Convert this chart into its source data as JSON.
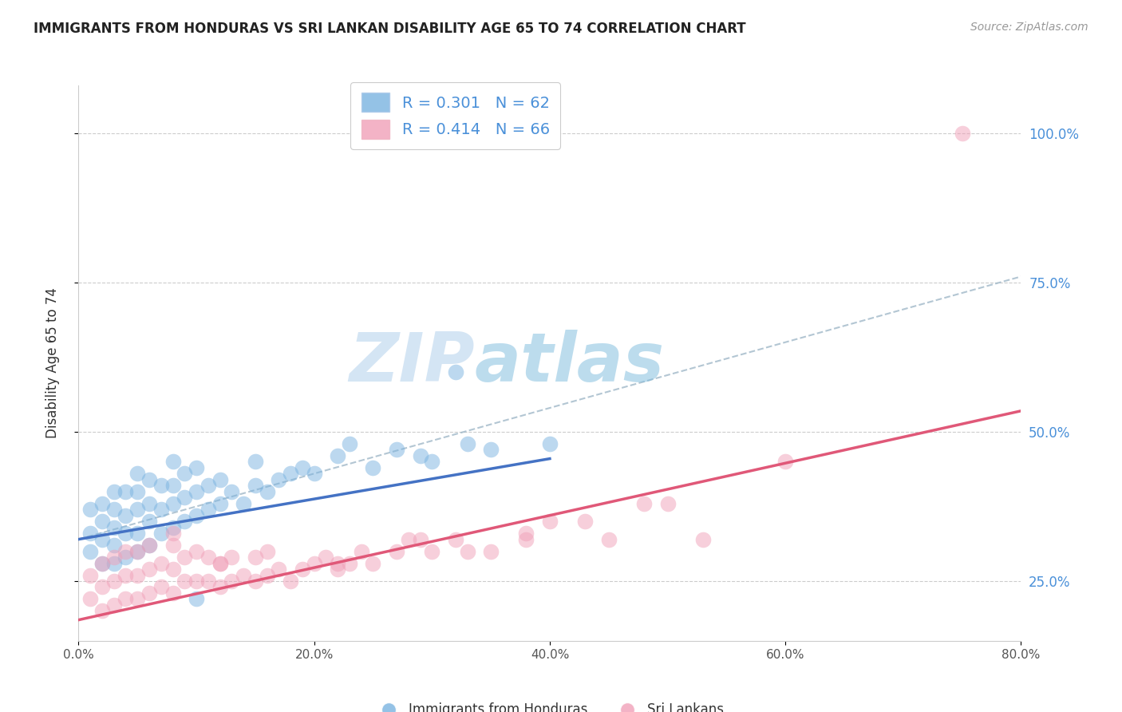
{
  "title": "IMMIGRANTS FROM HONDURAS VS SRI LANKAN DISABILITY AGE 65 TO 74 CORRELATION CHART",
  "source": "Source: ZipAtlas.com",
  "ylabel": "Disability Age 65 to 74",
  "legend_label1": "Immigrants from Honduras",
  "legend_label2": "Sri Lankans",
  "R1": 0.301,
  "N1": 62,
  "R2": 0.414,
  "N2": 66,
  "color_blue": "#7ab3e0",
  "color_pink": "#f0a0b8",
  "trendline_blue": "#4472c4",
  "trendline_pink": "#e05878",
  "trendline_gray": "#a0b8c8",
  "xmin": 0.0,
  "xmax": 0.8,
  "ymin": 0.15,
  "ymax": 1.08,
  "xticks": [
    0.0,
    0.2,
    0.4,
    0.6,
    0.8
  ],
  "yticks": [
    0.25,
    0.5,
    0.75,
    1.0
  ],
  "xtick_labels": [
    "0.0%",
    "20.0%",
    "40.0%",
    "60.0%",
    "80.0%"
  ],
  "ytick_labels": [
    "25.0%",
    "50.0%",
    "75.0%",
    "100.0%"
  ],
  "watermark_zip": "ZIP",
  "watermark_atlas": "atlas",
  "blue_scatter_x": [
    0.01,
    0.01,
    0.01,
    0.02,
    0.02,
    0.02,
    0.02,
    0.03,
    0.03,
    0.03,
    0.03,
    0.03,
    0.04,
    0.04,
    0.04,
    0.04,
    0.05,
    0.05,
    0.05,
    0.05,
    0.05,
    0.06,
    0.06,
    0.06,
    0.06,
    0.07,
    0.07,
    0.07,
    0.08,
    0.08,
    0.08,
    0.08,
    0.09,
    0.09,
    0.09,
    0.1,
    0.1,
    0.1,
    0.11,
    0.11,
    0.12,
    0.12,
    0.13,
    0.14,
    0.15,
    0.15,
    0.16,
    0.17,
    0.18,
    0.19,
    0.2,
    0.22,
    0.23,
    0.25,
    0.27,
    0.29,
    0.3,
    0.33,
    0.35,
    0.4,
    0.1,
    0.32
  ],
  "blue_scatter_y": [
    0.3,
    0.33,
    0.37,
    0.28,
    0.32,
    0.35,
    0.38,
    0.28,
    0.31,
    0.34,
    0.37,
    0.4,
    0.29,
    0.33,
    0.36,
    0.4,
    0.3,
    0.33,
    0.37,
    0.4,
    0.43,
    0.31,
    0.35,
    0.38,
    0.42,
    0.33,
    0.37,
    0.41,
    0.34,
    0.38,
    0.41,
    0.45,
    0.35,
    0.39,
    0.43,
    0.36,
    0.4,
    0.44,
    0.37,
    0.41,
    0.38,
    0.42,
    0.4,
    0.38,
    0.41,
    0.45,
    0.4,
    0.42,
    0.43,
    0.44,
    0.43,
    0.46,
    0.48,
    0.44,
    0.47,
    0.46,
    0.45,
    0.48,
    0.47,
    0.48,
    0.22,
    0.6
  ],
  "pink_scatter_x": [
    0.01,
    0.01,
    0.02,
    0.02,
    0.02,
    0.03,
    0.03,
    0.03,
    0.04,
    0.04,
    0.04,
    0.05,
    0.05,
    0.05,
    0.06,
    0.06,
    0.06,
    0.07,
    0.07,
    0.08,
    0.08,
    0.08,
    0.09,
    0.09,
    0.1,
    0.1,
    0.11,
    0.11,
    0.12,
    0.12,
    0.13,
    0.13,
    0.14,
    0.15,
    0.15,
    0.16,
    0.17,
    0.18,
    0.19,
    0.2,
    0.21,
    0.22,
    0.23,
    0.24,
    0.25,
    0.27,
    0.29,
    0.3,
    0.32,
    0.35,
    0.38,
    0.4,
    0.45,
    0.5,
    0.08,
    0.12,
    0.16,
    0.22,
    0.28,
    0.33,
    0.38,
    0.43,
    0.48,
    0.53,
    0.6,
    0.75
  ],
  "pink_scatter_y": [
    0.22,
    0.26,
    0.2,
    0.24,
    0.28,
    0.21,
    0.25,
    0.29,
    0.22,
    0.26,
    0.3,
    0.22,
    0.26,
    0.3,
    0.23,
    0.27,
    0.31,
    0.24,
    0.28,
    0.23,
    0.27,
    0.31,
    0.25,
    0.29,
    0.25,
    0.3,
    0.25,
    0.29,
    0.24,
    0.28,
    0.25,
    0.29,
    0.26,
    0.25,
    0.29,
    0.26,
    0.27,
    0.25,
    0.27,
    0.28,
    0.29,
    0.27,
    0.28,
    0.3,
    0.28,
    0.3,
    0.32,
    0.3,
    0.32,
    0.3,
    0.32,
    0.35,
    0.32,
    0.38,
    0.33,
    0.28,
    0.3,
    0.28,
    0.32,
    0.3,
    0.33,
    0.35,
    0.38,
    0.32,
    0.45,
    1.0
  ],
  "blue_trend_x": [
    0.0,
    0.4
  ],
  "blue_trend_y": [
    0.32,
    0.455
  ],
  "pink_trend_x": [
    0.0,
    0.8
  ],
  "pink_trend_y": [
    0.185,
    0.535
  ],
  "gray_trend_x": [
    0.0,
    0.8
  ],
  "gray_trend_y": [
    0.32,
    0.76
  ]
}
